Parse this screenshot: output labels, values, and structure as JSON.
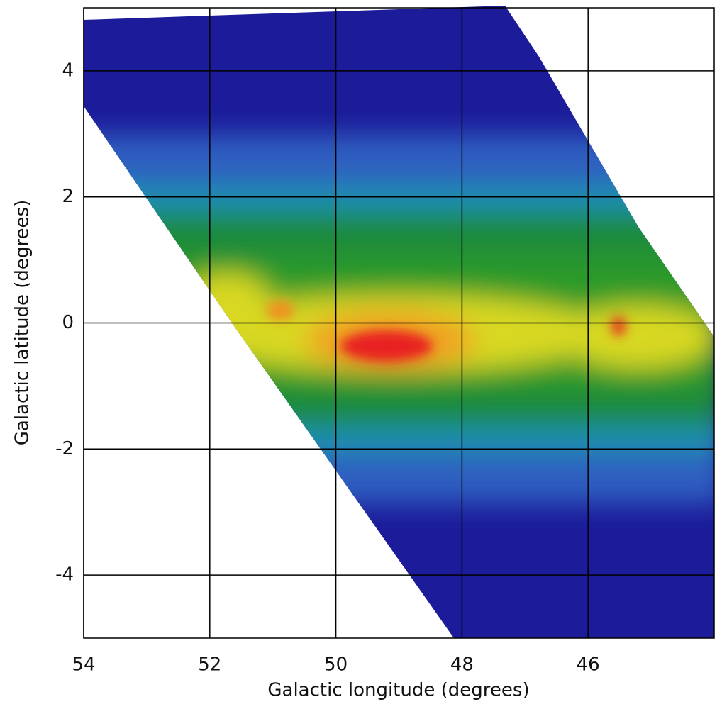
{
  "chart_data": {
    "type": "map",
    "xlabel": "Galactic longitude (degrees)",
    "ylabel": "Galactic latitude (degrees)",
    "xlim": [
      54,
      44
    ],
    "ylim": [
      -5,
      5
    ],
    "xticks": [
      54,
      52,
      50,
      48,
      46
    ],
    "yticks": [
      -4,
      -2,
      0,
      2,
      4
    ],
    "grid": true
  }
}
